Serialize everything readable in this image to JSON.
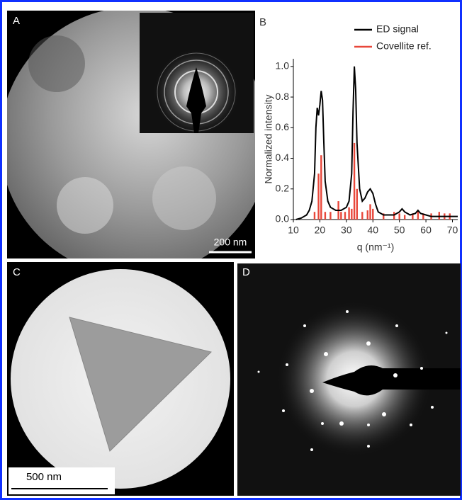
{
  "panels": [
    {
      "label": "A",
      "scale_bar": "200 nm"
    },
    {
      "label": "B"
    },
    {
      "label": "C",
      "scale_bar": "500 nm"
    },
    {
      "label": "D"
    }
  ],
  "chart_data": {
    "type": "line",
    "y_label": "Normalized intensity",
    "x_label": "q (nm⁻¹)",
    "xlim": [
      10,
      72
    ],
    "xticks": [
      10,
      20,
      30,
      40,
      50,
      60,
      70
    ],
    "ylim": [
      0,
      1.05
    ],
    "yticks": [
      {
        "value": 0,
        "label": "0.0"
      },
      0.2,
      0.4,
      0.6,
      0.8,
      {
        "value": 1,
        "label": "1.0"
      }
    ],
    "legend": "top-right",
    "series": [
      {
        "name": "ED signal",
        "color": "#000000",
        "x": [
          11,
          13,
          15,
          16,
          17,
          18,
          18.5,
          19,
          19.5,
          20,
          20.5,
          21,
          21.5,
          22,
          23,
          24,
          26,
          28,
          30,
          31,
          32,
          32.5,
          33,
          33.5,
          34,
          35,
          36,
          37,
          38,
          39,
          40,
          41,
          42,
          44,
          46,
          48,
          50,
          51,
          52,
          54,
          56,
          57,
          58,
          60,
          62,
          64,
          66,
          68,
          70,
          72
        ],
        "values": [
          0.0,
          0.01,
          0.03,
          0.06,
          0.12,
          0.3,
          0.6,
          0.73,
          0.68,
          0.75,
          0.84,
          0.78,
          0.5,
          0.25,
          0.12,
          0.08,
          0.06,
          0.06,
          0.08,
          0.12,
          0.3,
          0.7,
          1.0,
          0.85,
          0.5,
          0.2,
          0.12,
          0.14,
          0.18,
          0.2,
          0.17,
          0.1,
          0.05,
          0.03,
          0.03,
          0.03,
          0.05,
          0.07,
          0.05,
          0.03,
          0.04,
          0.06,
          0.04,
          0.03,
          0.02,
          0.02,
          0.02,
          0.02,
          0.02,
          0.02
        ]
      },
      {
        "name": "Covellite ref.",
        "color": "#e8473a",
        "type": "bar",
        "x": [
          18,
          19.5,
          20.5,
          22,
          24,
          27,
          28,
          29.5,
          31,
          32,
          33,
          34,
          36,
          38,
          39,
          40,
          44,
          48,
          50,
          52,
          55,
          57,
          59,
          62,
          65,
          67,
          69
        ],
        "values": [
          0.05,
          0.3,
          0.42,
          0.05,
          0.05,
          0.12,
          0.05,
          0.05,
          0.08,
          0.07,
          0.5,
          0.2,
          0.05,
          0.06,
          0.1,
          0.07,
          0.04,
          0.05,
          0.04,
          0.03,
          0.04,
          0.06,
          0.04,
          0.04,
          0.05,
          0.04,
          0.04
        ]
      }
    ]
  }
}
